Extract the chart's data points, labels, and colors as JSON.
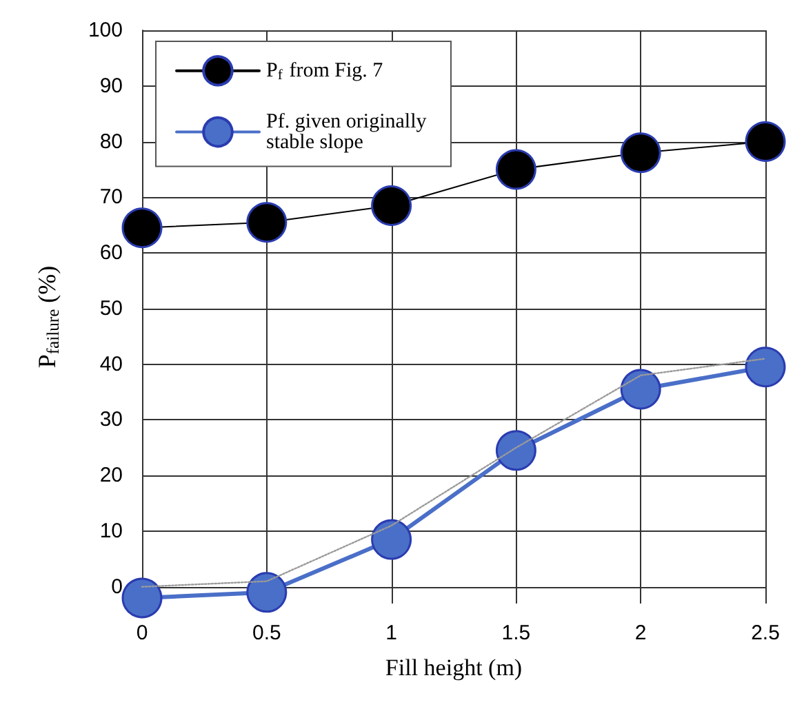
{
  "chart_data": {
    "type": "line",
    "xlabel": "Fill height (m)",
    "ylabel": "P$_{failure}$ (%)",
    "x": [
      0,
      0.5,
      1,
      1.5,
      2,
      2.5
    ],
    "series": [
      {
        "name": "P$_{f}$ from Fig. 7",
        "color": "#000000",
        "values": [
          64.5,
          65.5,
          68.5,
          75,
          78,
          80
        ]
      },
      {
        "name": "Pf. given originally stable slope",
        "color": "#4a6fc8",
        "values": [
          -2,
          -1,
          8.5,
          24.5,
          35.5,
          39.5
        ]
      },
      {
        "color": "#9a9a9a",
        "values": [
          0,
          1,
          11,
          25,
          38,
          41
        ],
        "marker": "none",
        "line_style": "dotted"
      }
    ],
    "xlim": [
      0,
      2.5
    ],
    "xticks": [
      0,
      0.5,
      1,
      1.5,
      2,
      2.5
    ],
    "ylim": [
      -3,
      100
    ],
    "yticks": [
      0,
      10,
      20,
      30,
      40,
      50,
      60,
      70,
      80,
      90,
      100
    ],
    "grid": true,
    "legend": "top left",
    "marker": "circle",
    "line_style": "solid"
  }
}
